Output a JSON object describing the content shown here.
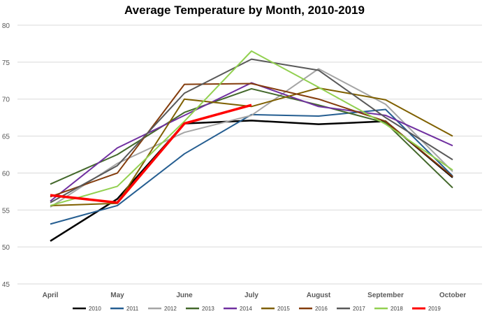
{
  "chart_data": {
    "type": "line",
    "title": "Average Temperature by Month, 2010-2019",
    "xlabel": "",
    "ylabel": "",
    "categories": [
      "April",
      "May",
      "June",
      "July",
      "August",
      "September",
      "October"
    ],
    "ylim": [
      45,
      80
    ],
    "yticks": [
      45,
      50,
      55,
      60,
      65,
      70,
      75,
      80
    ],
    "grid": true,
    "legend": "bottom",
    "series": [
      {
        "name": "2010",
        "color": "#000000",
        "width": 2.5,
        "values": [
          50.8,
          56.5,
          66.7,
          67.1,
          66.6,
          67.0,
          59.4
        ]
      },
      {
        "name": "2011",
        "color": "#255e91",
        "width": 2,
        "values": [
          53.1,
          55.6,
          62.6,
          67.9,
          67.7,
          68.6,
          59.6
        ]
      },
      {
        "name": "2012",
        "color": "#a5a5a5",
        "width": 2,
        "values": [
          55.4,
          61.3,
          65.5,
          67.8,
          74.1,
          69.3,
          60.2
        ]
      },
      {
        "name": "2013",
        "color": "#43682b",
        "width": 2,
        "values": [
          58.5,
          62.5,
          68.2,
          71.4,
          69.2,
          66.8,
          58.0
        ]
      },
      {
        "name": "2014",
        "color": "#7030a0",
        "width": 2,
        "values": [
          56.2,
          63.4,
          67.8,
          72.2,
          69.0,
          67.8,
          63.7
        ]
      },
      {
        "name": "2015",
        "color": "#7f6000",
        "width": 2,
        "values": [
          55.6,
          55.9,
          70.0,
          69.0,
          71.5,
          69.9,
          65.0
        ]
      },
      {
        "name": "2016",
        "color": "#843c0c",
        "width": 2,
        "values": [
          56.8,
          60.0,
          72.0,
          72.1,
          70.0,
          67.0,
          59.5
        ]
      },
      {
        "name": "2017",
        "color": "#595959",
        "width": 2,
        "values": [
          56.0,
          61.0,
          70.8,
          75.4,
          73.9,
          67.5,
          61.8
        ]
      },
      {
        "name": "2018",
        "color": "#92d050",
        "width": 2,
        "values": [
          55.6,
          58.2,
          67.0,
          76.5,
          71.6,
          66.6,
          60.4
        ]
      },
      {
        "name": "2019",
        "color": "#ff0000",
        "width": 3.5,
        "values": [
          57.0,
          56.0,
          66.7,
          69.2,
          null,
          null,
          null
        ]
      }
    ]
  }
}
